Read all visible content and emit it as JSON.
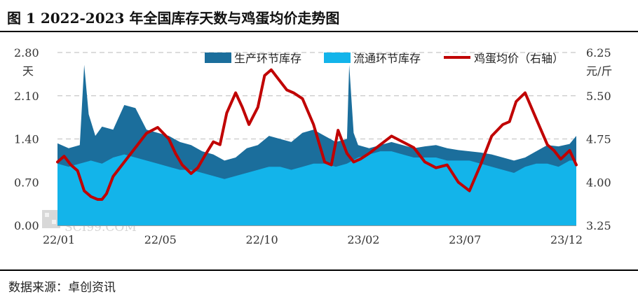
{
  "title": "图 1  2022-2023 年全国库存天数与鸡蛋均价走势图",
  "source": "数据来源：卓创资讯",
  "watermark": "SCI99.COM",
  "chart_data": {
    "type": "area",
    "y_left": {
      "unit": "天",
      "ticks": [
        "0.00",
        "0.70",
        "1.40",
        "2.10",
        "2.80"
      ],
      "range": [
        0,
        2.8
      ]
    },
    "y_right": {
      "unit": "元/斤",
      "ticks": [
        "3.25",
        "4.00",
        "4.75",
        "5.50",
        "6.25"
      ],
      "range": [
        3.25,
        6.25
      ]
    },
    "x_ticks": [
      "22/01",
      "22/05",
      "22/10",
      "23/02",
      "23/07",
      "23/12"
    ],
    "x_range_months": [
      0,
      23.3
    ],
    "legend": [
      "生产环节库存",
      "流通环节库存",
      "鸡蛋均价（右轴）"
    ],
    "colors": {
      "production": "#1b6e9c",
      "circulation": "#13b4ea",
      "price": "#c00000"
    },
    "series": [
      {
        "name": "生产环节库存",
        "axis": "left",
        "x": [
          0.0,
          0.5,
          1.0,
          1.2,
          1.4,
          1.7,
          2.0,
          2.5,
          3.0,
          3.5,
          4.0,
          4.5,
          5.0,
          5.5,
          6.0,
          6.5,
          7.0,
          7.5,
          8.0,
          8.5,
          9.0,
          9.5,
          10.0,
          10.5,
          11.0,
          11.5,
          12.0,
          12.5,
          13.0,
          13.1,
          13.3,
          13.5,
          14.0,
          14.5,
          15.0,
          15.5,
          16.0,
          16.5,
          17.0,
          17.5,
          18.0,
          18.5,
          19.0,
          19.5,
          20.0,
          20.5,
          21.0,
          21.5,
          22.0,
          22.5,
          23.0,
          23.3
        ],
        "values": [
          1.33,
          1.25,
          1.3,
          2.6,
          1.8,
          1.45,
          1.6,
          1.55,
          1.95,
          1.9,
          1.55,
          1.5,
          1.45,
          1.35,
          1.3,
          1.2,
          1.15,
          1.05,
          1.1,
          1.25,
          1.3,
          1.45,
          1.4,
          1.35,
          1.5,
          1.55,
          1.45,
          1.35,
          1.4,
          2.6,
          1.5,
          1.3,
          1.25,
          1.3,
          1.35,
          1.3,
          1.25,
          1.28,
          1.3,
          1.25,
          1.22,
          1.2,
          1.18,
          1.15,
          1.1,
          1.05,
          1.1,
          1.2,
          1.3,
          1.28,
          1.32,
          1.45
        ]
      },
      {
        "name": "流通环节库存",
        "axis": "left",
        "x": [
          0.0,
          0.5,
          1.0,
          1.5,
          2.0,
          2.5,
          3.0,
          3.5,
          4.0,
          4.5,
          5.0,
          5.5,
          6.0,
          6.5,
          7.0,
          7.5,
          8.0,
          8.5,
          9.0,
          9.5,
          10.0,
          10.5,
          11.0,
          11.5,
          12.0,
          12.5,
          13.0,
          13.5,
          14.0,
          14.5,
          15.0,
          15.5,
          16.0,
          16.5,
          17.0,
          17.5,
          18.0,
          18.5,
          19.0,
          19.5,
          20.0,
          20.5,
          21.0,
          21.5,
          22.0,
          22.5,
          23.0,
          23.3
        ],
        "values": [
          1.0,
          0.95,
          1.0,
          1.05,
          1.0,
          1.1,
          1.15,
          1.1,
          1.05,
          1.0,
          0.95,
          0.9,
          0.9,
          0.85,
          0.8,
          0.75,
          0.8,
          0.85,
          0.9,
          0.95,
          0.95,
          0.9,
          0.95,
          1.0,
          1.0,
          0.95,
          1.0,
          1.1,
          1.15,
          1.2,
          1.2,
          1.15,
          1.1,
          1.1,
          1.1,
          1.05,
          1.05,
          1.05,
          1.0,
          0.95,
          0.9,
          0.85,
          0.95,
          1.0,
          1.0,
          0.95,
          1.05,
          1.05
        ]
      },
      {
        "name": "鸡蛋均价（右轴）",
        "axis": "right",
        "x": [
          0.0,
          0.3,
          0.6,
          0.9,
          1.2,
          1.5,
          1.8,
          2.0,
          2.2,
          2.5,
          3.0,
          3.5,
          4.0,
          4.5,
          5.0,
          5.3,
          5.6,
          6.0,
          6.3,
          6.6,
          7.0,
          7.3,
          7.6,
          8.0,
          8.3,
          8.6,
          9.0,
          9.3,
          9.6,
          10.0,
          10.3,
          10.6,
          11.0,
          11.5,
          12.0,
          12.3,
          12.6,
          13.0,
          13.3,
          13.6,
          14.0,
          14.5,
          15.0,
          15.5,
          16.0,
          16.5,
          17.0,
          17.5,
          18.0,
          18.5,
          19.0,
          19.5,
          20.0,
          20.3,
          20.6,
          21.0,
          21.5,
          22.0,
          22.3,
          22.6,
          23.0,
          23.3
        ],
        "values": [
          4.35,
          4.45,
          4.3,
          4.2,
          3.85,
          3.75,
          3.7,
          3.7,
          3.8,
          4.1,
          4.35,
          4.6,
          4.85,
          4.95,
          4.75,
          4.5,
          4.3,
          4.15,
          4.25,
          4.45,
          4.7,
          4.65,
          5.2,
          5.55,
          5.3,
          5.0,
          5.3,
          5.85,
          5.95,
          5.75,
          5.6,
          5.55,
          5.45,
          5.0,
          4.35,
          4.3,
          4.9,
          4.5,
          4.35,
          4.4,
          4.5,
          4.65,
          4.8,
          4.7,
          4.6,
          4.35,
          4.25,
          4.3,
          4.0,
          3.85,
          4.3,
          4.8,
          5.0,
          5.05,
          5.4,
          5.55,
          5.1,
          4.65,
          4.55,
          4.4,
          4.55,
          4.3
        ]
      }
    ]
  }
}
